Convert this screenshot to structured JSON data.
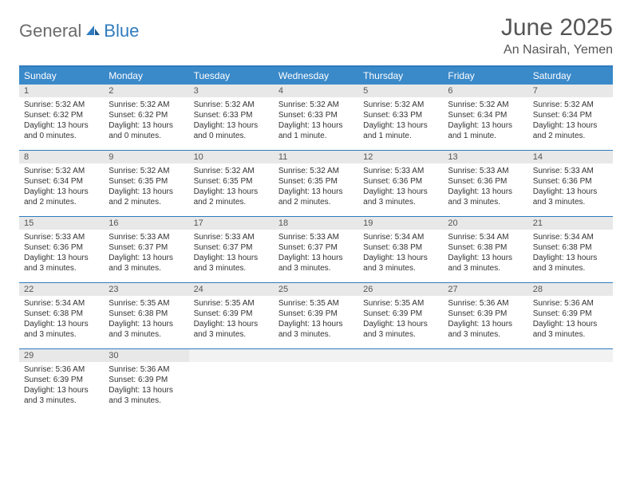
{
  "logo": {
    "text1": "General",
    "text2": "Blue"
  },
  "title": "June 2025",
  "location": "An Nasirah, Yemen",
  "colors": {
    "header_bar": "#3a89c9",
    "border": "#2f7bbf",
    "daynum_bg": "#e8e8e8",
    "text": "#333333",
    "title_text": "#555555"
  },
  "weekdays": [
    "Sunday",
    "Monday",
    "Tuesday",
    "Wednesday",
    "Thursday",
    "Friday",
    "Saturday"
  ],
  "weeks": [
    [
      {
        "n": "1",
        "sr": "5:32 AM",
        "ss": "6:32 PM",
        "dl": "13 hours and 0 minutes."
      },
      {
        "n": "2",
        "sr": "5:32 AM",
        "ss": "6:32 PM",
        "dl": "13 hours and 0 minutes."
      },
      {
        "n": "3",
        "sr": "5:32 AM",
        "ss": "6:33 PM",
        "dl": "13 hours and 0 minutes."
      },
      {
        "n": "4",
        "sr": "5:32 AM",
        "ss": "6:33 PM",
        "dl": "13 hours and 1 minute."
      },
      {
        "n": "5",
        "sr": "5:32 AM",
        "ss": "6:33 PM",
        "dl": "13 hours and 1 minute."
      },
      {
        "n": "6",
        "sr": "5:32 AM",
        "ss": "6:34 PM",
        "dl": "13 hours and 1 minute."
      },
      {
        "n": "7",
        "sr": "5:32 AM",
        "ss": "6:34 PM",
        "dl": "13 hours and 2 minutes."
      }
    ],
    [
      {
        "n": "8",
        "sr": "5:32 AM",
        "ss": "6:34 PM",
        "dl": "13 hours and 2 minutes."
      },
      {
        "n": "9",
        "sr": "5:32 AM",
        "ss": "6:35 PM",
        "dl": "13 hours and 2 minutes."
      },
      {
        "n": "10",
        "sr": "5:32 AM",
        "ss": "6:35 PM",
        "dl": "13 hours and 2 minutes."
      },
      {
        "n": "11",
        "sr": "5:32 AM",
        "ss": "6:35 PM",
        "dl": "13 hours and 2 minutes."
      },
      {
        "n": "12",
        "sr": "5:33 AM",
        "ss": "6:36 PM",
        "dl": "13 hours and 3 minutes."
      },
      {
        "n": "13",
        "sr": "5:33 AM",
        "ss": "6:36 PM",
        "dl": "13 hours and 3 minutes."
      },
      {
        "n": "14",
        "sr": "5:33 AM",
        "ss": "6:36 PM",
        "dl": "13 hours and 3 minutes."
      }
    ],
    [
      {
        "n": "15",
        "sr": "5:33 AM",
        "ss": "6:36 PM",
        "dl": "13 hours and 3 minutes."
      },
      {
        "n": "16",
        "sr": "5:33 AM",
        "ss": "6:37 PM",
        "dl": "13 hours and 3 minutes."
      },
      {
        "n": "17",
        "sr": "5:33 AM",
        "ss": "6:37 PM",
        "dl": "13 hours and 3 minutes."
      },
      {
        "n": "18",
        "sr": "5:33 AM",
        "ss": "6:37 PM",
        "dl": "13 hours and 3 minutes."
      },
      {
        "n": "19",
        "sr": "5:34 AM",
        "ss": "6:38 PM",
        "dl": "13 hours and 3 minutes."
      },
      {
        "n": "20",
        "sr": "5:34 AM",
        "ss": "6:38 PM",
        "dl": "13 hours and 3 minutes."
      },
      {
        "n": "21",
        "sr": "5:34 AM",
        "ss": "6:38 PM",
        "dl": "13 hours and 3 minutes."
      }
    ],
    [
      {
        "n": "22",
        "sr": "5:34 AM",
        "ss": "6:38 PM",
        "dl": "13 hours and 3 minutes."
      },
      {
        "n": "23",
        "sr": "5:35 AM",
        "ss": "6:38 PM",
        "dl": "13 hours and 3 minutes."
      },
      {
        "n": "24",
        "sr": "5:35 AM",
        "ss": "6:39 PM",
        "dl": "13 hours and 3 minutes."
      },
      {
        "n": "25",
        "sr": "5:35 AM",
        "ss": "6:39 PM",
        "dl": "13 hours and 3 minutes."
      },
      {
        "n": "26",
        "sr": "5:35 AM",
        "ss": "6:39 PM",
        "dl": "13 hours and 3 minutes."
      },
      {
        "n": "27",
        "sr": "5:36 AM",
        "ss": "6:39 PM",
        "dl": "13 hours and 3 minutes."
      },
      {
        "n": "28",
        "sr": "5:36 AM",
        "ss": "6:39 PM",
        "dl": "13 hours and 3 minutes."
      }
    ],
    [
      {
        "n": "29",
        "sr": "5:36 AM",
        "ss": "6:39 PM",
        "dl": "13 hours and 3 minutes."
      },
      {
        "n": "30",
        "sr": "5:36 AM",
        "ss": "6:39 PM",
        "dl": "13 hours and 3 minutes."
      },
      {
        "n": "",
        "sr": "",
        "ss": "",
        "dl": "",
        "empty": true
      },
      {
        "n": "",
        "sr": "",
        "ss": "",
        "dl": "",
        "empty": true
      },
      {
        "n": "",
        "sr": "",
        "ss": "",
        "dl": "",
        "empty": true
      },
      {
        "n": "",
        "sr": "",
        "ss": "",
        "dl": "",
        "empty": true
      },
      {
        "n": "",
        "sr": "",
        "ss": "",
        "dl": "",
        "empty": true
      }
    ]
  ],
  "labels": {
    "sunrise": "Sunrise: ",
    "sunset": "Sunset: ",
    "daylight": "Daylight: "
  }
}
